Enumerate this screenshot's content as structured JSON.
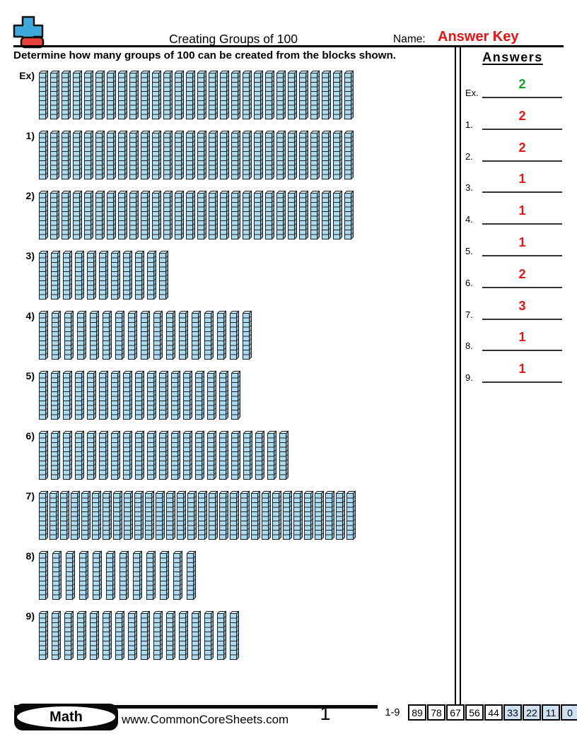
{
  "header": {
    "title": "Creating Groups of 100",
    "name_label": "Name:",
    "name_value": "Answer Key",
    "name_value_color": "#EE1111",
    "logo_colors": {
      "cross": "#3FA9DC",
      "bar": "#E8413C",
      "outline": "#111111"
    }
  },
  "instruction": "Determine how many groups of 100 can be created from the blocks shown.",
  "answers_panel": {
    "title": "Answers",
    "items": [
      {
        "label": "Ex.",
        "value": "2",
        "color": "#12A32A"
      },
      {
        "label": "1.",
        "value": "2",
        "color": "#EE1111"
      },
      {
        "label": "2.",
        "value": "2",
        "color": "#EE1111"
      },
      {
        "label": "3.",
        "value": "1",
        "color": "#EE1111"
      },
      {
        "label": "4.",
        "value": "1",
        "color": "#EE1111"
      },
      {
        "label": "5.",
        "value": "1",
        "color": "#EE1111"
      },
      {
        "label": "6.",
        "value": "2",
        "color": "#EE1111"
      },
      {
        "label": "7.",
        "value": "3",
        "color": "#EE1111"
      },
      {
        "label": "8.",
        "value": "1",
        "color": "#EE1111"
      },
      {
        "label": "9.",
        "value": "1",
        "color": "#EE1111"
      }
    ]
  },
  "chart_data": {
    "type": "table",
    "description": "Base-ten rods shown per problem; each rod = 10 units",
    "problems": [
      {
        "label": "Ex)",
        "rods": 28,
        "total_units": 280,
        "groups_of_100": 2
      },
      {
        "label": "1)",
        "rods": 28,
        "total_units": 280,
        "groups_of_100": 2
      },
      {
        "label": "2)",
        "rods": 28,
        "total_units": 280,
        "groups_of_100": 2
      },
      {
        "label": "3)",
        "rods": 11,
        "total_units": 110,
        "groups_of_100": 1
      },
      {
        "label": "4)",
        "rods": 17,
        "total_units": 170,
        "groups_of_100": 1
      },
      {
        "label": "5)",
        "rods": 17,
        "total_units": 170,
        "groups_of_100": 1
      },
      {
        "label": "6)",
        "rods": 21,
        "total_units": 210,
        "groups_of_100": 2
      },
      {
        "label": "7)",
        "rods": 30,
        "total_units": 300,
        "groups_of_100": 3
      },
      {
        "label": "8)",
        "rods": 12,
        "total_units": 120,
        "groups_of_100": 1
      },
      {
        "label": "9)",
        "rods": 16,
        "total_units": 160,
        "groups_of_100": 1
      }
    ],
    "rod_colors": {
      "front": "#ABDCF2",
      "side": "#7FAFC8",
      "top": "#D8EFF8",
      "outline": "#1C1C1C"
    }
  },
  "footer": {
    "subject_badge": "Math",
    "website": "www.CommonCoreSheets.com",
    "page_number": "1",
    "score_table": {
      "label": "1-9",
      "shaded_color": "#CFE2F4",
      "cells": [
        {
          "value": "89",
          "shaded": false
        },
        {
          "value": "78",
          "shaded": false
        },
        {
          "value": "67",
          "shaded": false
        },
        {
          "value": "56",
          "shaded": false
        },
        {
          "value": "44",
          "shaded": false
        },
        {
          "value": "33",
          "shaded": true
        },
        {
          "value": "22",
          "shaded": true
        },
        {
          "value": "11",
          "shaded": true
        },
        {
          "value": "0",
          "shaded": true
        }
      ]
    }
  }
}
